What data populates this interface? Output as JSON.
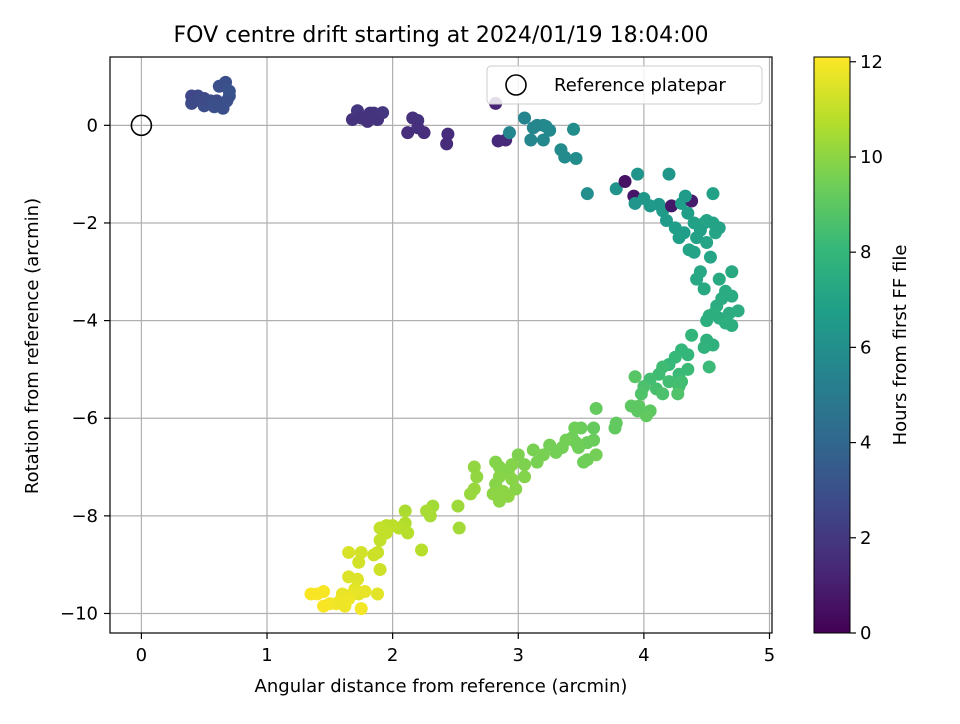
{
  "chart_data": {
    "type": "scatter",
    "title": "FOV centre drift starting at 2024/01/19 18:04:00",
    "xlabel": "Angular distance from reference (arcmin)",
    "ylabel": "Rotation from reference (arcmin)",
    "xlim": [
      -0.25,
      5.02
    ],
    "ylim": [
      -10.4,
      1.4
    ],
    "xticks": [
      0,
      1,
      2,
      3,
      4,
      5
    ],
    "yticks": [
      0,
      -2,
      -4,
      -6,
      -8,
      -10
    ],
    "xtick_labels": [
      "0",
      "1",
      "2",
      "3",
      "4",
      "5"
    ],
    "ytick_labels": [
      "0",
      "−2",
      "−4",
      "−6",
      "−8",
      "−10"
    ],
    "grid": true,
    "legend": {
      "placement": "top-right",
      "entries": [
        "Reference platepar"
      ]
    },
    "reference_point": {
      "x": 0,
      "y": 0
    },
    "colorbar": {
      "label": "Hours from first FF file",
      "min": 0,
      "max": 12.1,
      "ticks": [
        0,
        2,
        4,
        6,
        8,
        10,
        12
      ],
      "tick_labels": [
        "0",
        "2",
        "4",
        "6",
        "8",
        "10",
        "12"
      ],
      "colormap": "viridis",
      "colormap_stops": [
        "#440154",
        "#482878",
        "#3e4989",
        "#31688e",
        "#26828e",
        "#1f9e89",
        "#35b779",
        "#6ece58",
        "#b5de2b",
        "#fde725"
      ]
    },
    "points": [
      [
        0.5,
        0.55,
        2.7
      ],
      [
        0.4,
        0.45,
        2.8
      ],
      [
        0.45,
        0.6,
        2.7
      ],
      [
        0.55,
        0.5,
        2.9
      ],
      [
        0.6,
        0.4,
        2.8
      ],
      [
        0.5,
        0.4,
        2.9
      ],
      [
        0.65,
        0.35,
        3.0
      ],
      [
        0.4,
        0.6,
        2.6
      ],
      [
        0.6,
        0.5,
        2.8
      ],
      [
        0.62,
        0.8,
        3.0
      ],
      [
        0.67,
        0.88,
        3.0
      ],
      [
        0.7,
        0.6,
        3.1
      ],
      [
        0.68,
        0.5,
        3.0
      ],
      [
        0.55,
        0.45,
        2.9
      ],
      [
        0.42,
        0.5,
        2.7
      ],
      [
        0.58,
        0.38,
        3.0
      ],
      [
        0.7,
        0.7,
        3.1
      ],
      [
        0.47,
        0.52,
        2.8
      ],
      [
        1.68,
        0.12,
        1.8
      ],
      [
        1.72,
        0.3,
        1.9
      ],
      [
        1.75,
        0.15,
        1.8
      ],
      [
        1.8,
        0.08,
        1.7
      ],
      [
        1.85,
        0.25,
        1.9
      ],
      [
        1.88,
        0.12,
        1.8
      ],
      [
        1.92,
        0.26,
        1.9
      ],
      [
        1.82,
        0.25,
        1.85
      ],
      [
        2.12,
        -0.15,
        1.6
      ],
      [
        2.16,
        0.15,
        1.7
      ],
      [
        2.2,
        0.1,
        1.75
      ],
      [
        2.25,
        -0.15,
        1.6
      ],
      [
        2.2,
        -0.05,
        1.65
      ],
      [
        2.43,
        -0.38,
        1.5
      ],
      [
        2.44,
        -0.18,
        1.55
      ],
      [
        2.82,
        0.45,
        1.2
      ],
      [
        2.84,
        -0.32,
        1.4
      ],
      [
        2.9,
        -0.3,
        1.45
      ],
      [
        2.93,
        -0.15,
        5.6
      ],
      [
        3.05,
        0.15,
        5.5
      ],
      [
        3.1,
        -0.3,
        5.6
      ],
      [
        3.15,
        0,
        5.6
      ],
      [
        3.2,
        -0.3,
        5.7
      ],
      [
        3.2,
        0.0,
        5.6
      ],
      [
        3.25,
        -0.1,
        5.7
      ],
      [
        3.12,
        -0.05,
        5.6
      ],
      [
        3.22,
        -0.02,
        5.7
      ],
      [
        3.34,
        -0.5,
        5.8
      ],
      [
        3.37,
        -0.65,
        5.8
      ],
      [
        3.44,
        -0.08,
        5.9
      ],
      [
        3.46,
        -0.68,
        5.9
      ],
      [
        3.55,
        -1.4,
        6.0
      ],
      [
        3.78,
        -1.3,
        6.2
      ],
      [
        3.85,
        -1.15,
        0.6
      ],
      [
        3.92,
        -1.45,
        0.7
      ],
      [
        3.93,
        -1.6,
        6.3
      ],
      [
        3.95,
        -1.0,
        6.3
      ],
      [
        4.0,
        -1.5,
        6.4
      ],
      [
        4.05,
        -1.65,
        6.5
      ],
      [
        4.12,
        -1.62,
        6.5
      ],
      [
        4.15,
        -1.75,
        6.6
      ],
      [
        4.22,
        -1.65,
        0.8
      ],
      [
        4.18,
        -1.95,
        6.6
      ],
      [
        4.25,
        -2.1,
        6.7
      ],
      [
        4.3,
        -1.6,
        6.7
      ],
      [
        4.38,
        -1.55,
        0.9
      ],
      [
        4.32,
        -2.2,
        6.7
      ],
      [
        4.28,
        -2.3,
        6.8
      ],
      [
        4.35,
        -1.8,
        6.8
      ],
      [
        4.4,
        -2.0,
        6.9
      ],
      [
        4.45,
        -2.15,
        6.9
      ],
      [
        4.48,
        -2.0,
        6.9
      ],
      [
        4.5,
        -1.95,
        7.0
      ],
      [
        4.55,
        -2.0,
        7.0
      ],
      [
        4.57,
        -2.2,
        7.1
      ],
      [
        4.6,
        -2.1,
        7.0
      ],
      [
        4.42,
        -2.3,
        6.9
      ],
      [
        4.36,
        -2.55,
        7.0
      ],
      [
        4.4,
        -2.6,
        7.0
      ],
      [
        4.5,
        -2.4,
        7.1
      ],
      [
        4.53,
        -2.7,
        7.1
      ],
      [
        4.55,
        -1.4,
        6.9
      ],
      [
        4.2,
        -1.0,
        6.4
      ],
      [
        4.33,
        -1.45,
        6.6
      ],
      [
        4.45,
        -3.0,
        7.2
      ],
      [
        4.42,
        -3.15,
        7.2
      ],
      [
        4.6,
        -3.15,
        7.3
      ],
      [
        4.7,
        -3.0,
        7.3
      ],
      [
        4.48,
        -3.35,
        7.3
      ],
      [
        4.65,
        -3.4,
        7.4
      ],
      [
        4.62,
        -3.55,
        7.4
      ],
      [
        4.7,
        -3.5,
        7.4
      ],
      [
        4.58,
        -3.7,
        7.5
      ],
      [
        4.68,
        -3.85,
        7.5
      ],
      [
        4.75,
        -3.8,
        7.5
      ],
      [
        4.6,
        -3.95,
        7.5
      ],
      [
        4.52,
        -3.9,
        7.6
      ],
      [
        4.5,
        -4.0,
        7.6
      ],
      [
        4.65,
        -4.05,
        7.6
      ],
      [
        4.7,
        -4.1,
        7.6
      ],
      [
        4.56,
        -3.85,
        7.6
      ],
      [
        4.5,
        -4.4,
        7.7
      ],
      [
        4.55,
        -4.5,
        7.7
      ],
      [
        4.48,
        -4.55,
        7.8
      ],
      [
        4.38,
        -4.3,
        7.9
      ],
      [
        4.3,
        -4.6,
        8.0
      ],
      [
        4.35,
        -4.7,
        8.0
      ],
      [
        4.25,
        -4.75,
        8.1
      ],
      [
        4.2,
        -4.9,
        8.1
      ],
      [
        4.35,
        -5.0,
        8.2
      ],
      [
        4.28,
        -5.1,
        8.2
      ],
      [
        4.15,
        -4.95,
        8.3
      ],
      [
        4.12,
        -5.1,
        8.3
      ],
      [
        4.05,
        -5.2,
        8.4
      ],
      [
        4.2,
        -5.25,
        8.4
      ],
      [
        4.28,
        -5.35,
        8.5
      ],
      [
        4.1,
        -5.4,
        8.5
      ],
      [
        4.0,
        -5.35,
        8.6
      ],
      [
        3.98,
        -5.5,
        8.7
      ],
      [
        4.15,
        -5.5,
        8.6
      ],
      [
        4.27,
        -5.5,
        8.7
      ],
      [
        4.52,
        -4.95,
        8.2
      ],
      [
        4.3,
        -5.25,
        8.4
      ],
      [
        3.93,
        -5.15,
        8.9
      ],
      [
        3.9,
        -5.75,
        9.0
      ],
      [
        3.95,
        -5.85,
        9.0
      ],
      [
        4.05,
        -5.85,
        9.0
      ],
      [
        4.02,
        -5.95,
        9.1
      ],
      [
        3.96,
        -5.75,
        9.0
      ],
      [
        3.78,
        -6.1,
        9.1
      ],
      [
        3.77,
        -6.2,
        9.1
      ],
      [
        3.62,
        -5.8,
        9.2
      ],
      [
        3.6,
        -6.2,
        9.2
      ],
      [
        3.6,
        -6.45,
        9.3
      ],
      [
        3.55,
        -6.5,
        9.3
      ],
      [
        3.5,
        -6.2,
        9.3
      ],
      [
        3.46,
        -6.5,
        9.4
      ],
      [
        3.48,
        -6.6,
        9.4
      ],
      [
        3.55,
        -6.85,
        9.4
      ],
      [
        3.62,
        -6.75,
        9.5
      ],
      [
        3.43,
        -6.4,
        9.4
      ],
      [
        3.45,
        -6.2,
        9.4
      ],
      [
        3.38,
        -6.45,
        9.5
      ],
      [
        3.35,
        -6.6,
        9.5
      ],
      [
        3.3,
        -6.7,
        9.5
      ],
      [
        3.25,
        -6.55,
        9.5
      ],
      [
        3.2,
        -6.75,
        9.6
      ],
      [
        3.15,
        -6.9,
        9.6
      ],
      [
        3.12,
        -6.65,
        9.6
      ],
      [
        3.05,
        -6.95,
        9.7
      ],
      [
        3.0,
        -6.75,
        9.7
      ],
      [
        2.95,
        -6.95,
        9.8
      ],
      [
        2.92,
        -7.1,
        9.8
      ],
      [
        3.05,
        -7.2,
        9.8
      ],
      [
        2.85,
        -7.0,
        9.8
      ],
      [
        2.85,
        -7.2,
        9.9
      ],
      [
        2.82,
        -7.35,
        9.9
      ],
      [
        2.95,
        -7.25,
        9.9
      ],
      [
        2.98,
        -7.45,
        9.9
      ],
      [
        2.88,
        -7.5,
        10.0
      ],
      [
        2.92,
        -7.6,
        10.0
      ],
      [
        2.85,
        -7.7,
        10.0
      ],
      [
        2.8,
        -7.55,
        10.0
      ],
      [
        2.65,
        -7.0,
        10.1
      ],
      [
        2.67,
        -7.2,
        10.1
      ],
      [
        2.65,
        -7.45,
        10.2
      ],
      [
        2.62,
        -7.55,
        10.2
      ],
      [
        3.52,
        -6.9,
        9.4
      ],
      [
        2.82,
        -6.9,
        9.8
      ],
      [
        2.52,
        -7.8,
        10.3
      ],
      [
        2.53,
        -8.25,
        10.4
      ],
      [
        2.32,
        -7.8,
        10.4
      ],
      [
        2.27,
        -7.9,
        10.5
      ],
      [
        2.3,
        -8.0,
        10.5
      ],
      [
        2.23,
        -8.7,
        10.8
      ],
      [
        2.1,
        -7.9,
        10.6
      ],
      [
        2.1,
        -8.15,
        10.7
      ],
      [
        2.12,
        -8.35,
        10.8
      ],
      [
        2.05,
        -8.25,
        10.8
      ],
      [
        2.0,
        -8.2,
        10.9
      ],
      [
        1.95,
        -8.2,
        10.9
      ],
      [
        1.9,
        -8.25,
        11.0
      ],
      [
        1.9,
        -8.5,
        11.0
      ],
      [
        1.95,
        -8.35,
        11.0
      ],
      [
        1.88,
        -8.75,
        11.1
      ],
      [
        1.85,
        -8.8,
        11.2
      ],
      [
        1.9,
        -9.1,
        11.2
      ],
      [
        1.75,
        -8.75,
        11.3
      ],
      [
        1.73,
        -8.95,
        11.3
      ],
      [
        1.65,
        -8.75,
        11.4
      ],
      [
        1.65,
        -9.25,
        11.5
      ],
      [
        1.72,
        -9.3,
        11.5
      ],
      [
        1.7,
        -9.5,
        11.6
      ],
      [
        1.73,
        -9.6,
        11.6
      ],
      [
        1.78,
        -9.55,
        11.7
      ],
      [
        1.68,
        -9.6,
        11.7
      ],
      [
        1.6,
        -9.6,
        11.7
      ],
      [
        1.65,
        -9.7,
        11.8
      ],
      [
        1.62,
        -9.85,
        11.8
      ],
      [
        1.55,
        -9.8,
        11.9
      ],
      [
        1.5,
        -9.8,
        11.9
      ],
      [
        1.45,
        -9.85,
        12.0
      ],
      [
        1.4,
        -9.6,
        12.0
      ],
      [
        1.35,
        -9.6,
        12.0
      ],
      [
        1.45,
        -9.55,
        12.0
      ],
      [
        1.75,
        -9.9,
        11.9
      ],
      [
        1.88,
        -9.6,
        11.6
      ],
      [
        1.58,
        -9.75,
        11.8
      ]
    ]
  }
}
